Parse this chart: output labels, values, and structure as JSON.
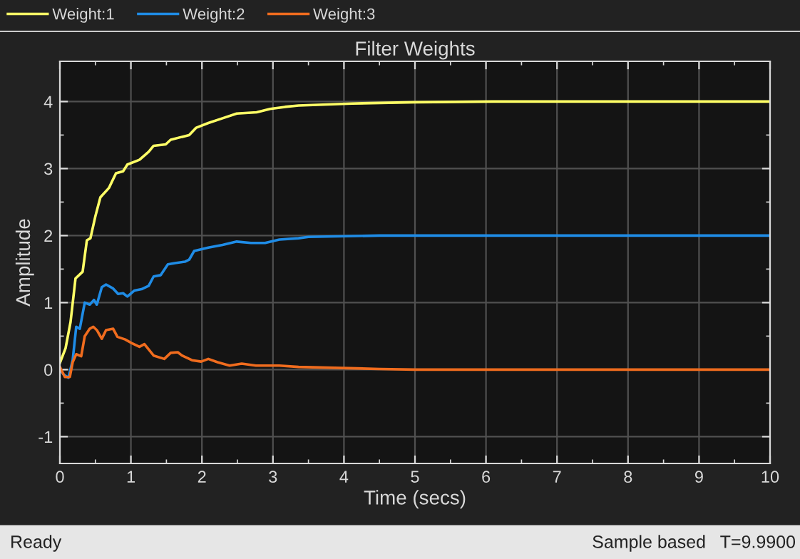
{
  "chart_data": {
    "type": "line",
    "title": "Filter Weights",
    "xlabel": "Time (secs)",
    "ylabel": "Amplitude",
    "xlim": [
      0,
      10
    ],
    "xticks": [
      0,
      1,
      2,
      3,
      4,
      5,
      6,
      7,
      8,
      9,
      10
    ],
    "ylim": [
      -1.4,
      4.6
    ],
    "yticks": [
      -1,
      0,
      1,
      2,
      3,
      4
    ],
    "grid": true,
    "legend": "top",
    "line_style": "solid",
    "annotations": [
      "Ready",
      "Sample based",
      "T=9.9900"
    ],
    "series": [
      {
        "name": "Weight:1",
        "color": "#ffff66",
        "x": [
          0,
          0.08,
          0.15,
          0.22,
          0.32,
          0.38,
          0.43,
          0.5,
          0.57,
          0.69,
          0.79,
          0.89,
          0.95,
          1.12,
          1.25,
          1.32,
          1.49,
          1.56,
          1.82,
          1.92,
          2.09,
          2.29,
          2.49,
          2.77,
          2.96,
          3.17,
          3.36,
          4.11,
          5,
          6.1,
          7,
          8,
          9,
          10
        ],
        "values": [
          0.1,
          0.32,
          0.71,
          1.36,
          1.46,
          1.93,
          1.96,
          2.29,
          2.57,
          2.71,
          2.93,
          2.96,
          3.06,
          3.13,
          3.25,
          3.34,
          3.36,
          3.43,
          3.5,
          3.61,
          3.68,
          3.75,
          3.82,
          3.84,
          3.89,
          3.92,
          3.94,
          3.97,
          3.99,
          4.0,
          4.0,
          4.0,
          4.0,
          4.0
        ]
      },
      {
        "name": "Weight:2",
        "color": "#1f8ce6",
        "x": [
          0,
          0.05,
          0.12,
          0.18,
          0.23,
          0.28,
          0.35,
          0.42,
          0.48,
          0.52,
          0.59,
          0.65,
          0.75,
          0.82,
          0.89,
          0.95,
          1.05,
          1.15,
          1.25,
          1.32,
          1.42,
          1.52,
          1.62,
          1.76,
          1.82,
          1.89,
          2.09,
          2.29,
          2.49,
          2.69,
          2.89,
          3.09,
          3.36,
          3.5,
          4.5,
          6,
          8,
          10
        ],
        "values": [
          0,
          -0.07,
          -0.12,
          0.14,
          0.64,
          0.61,
          1.0,
          0.97,
          1.04,
          0.97,
          1.23,
          1.27,
          1.21,
          1.13,
          1.14,
          1.09,
          1.18,
          1.2,
          1.25,
          1.39,
          1.41,
          1.57,
          1.59,
          1.61,
          1.64,
          1.77,
          1.82,
          1.86,
          1.91,
          1.89,
          1.89,
          1.94,
          1.96,
          1.98,
          2.0,
          2.0,
          2.0,
          2.0
        ]
      },
      {
        "name": "Weight:3",
        "color": "#f06c1e",
        "x": [
          0,
          0.07,
          0.14,
          0.18,
          0.23,
          0.3,
          0.35,
          0.42,
          0.47,
          0.52,
          0.59,
          0.65,
          0.75,
          0.81,
          0.92,
          1.02,
          1.12,
          1.19,
          1.32,
          1.47,
          1.56,
          1.66,
          1.72,
          1.86,
          1.99,
          2.09,
          2.22,
          2.39,
          2.56,
          2.76,
          3.09,
          3.36,
          4.5,
          5,
          7,
          10
        ],
        "values": [
          0.04,
          -0.11,
          -0.11,
          0.11,
          0.23,
          0.2,
          0.5,
          0.61,
          0.64,
          0.59,
          0.46,
          0.59,
          0.61,
          0.49,
          0.45,
          0.39,
          0.34,
          0.38,
          0.21,
          0.16,
          0.25,
          0.26,
          0.21,
          0.14,
          0.12,
          0.16,
          0.11,
          0.06,
          0.09,
          0.06,
          0.06,
          0.04,
          0.01,
          0.0,
          0.0,
          0.0
        ]
      }
    ]
  }
}
